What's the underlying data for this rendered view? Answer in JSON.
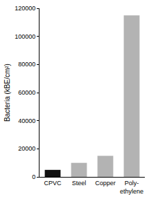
{
  "chart_data": {
    "type": "bar",
    "y_label": "Bacteria (kBE/cm²)",
    "categories": [
      "CPVC",
      "Steel",
      "Copper",
      "Poly-\nethylene"
    ],
    "values": [
      5000,
      10000,
      15000,
      115000
    ],
    "colors": [
      "#111111",
      "#b3b3b3",
      "#b3b3b3",
      "#b3b3b3"
    ],
    "ylim": [
      0,
      120000
    ],
    "yticks": [
      0,
      20000,
      40000,
      60000,
      80000,
      100000,
      120000
    ],
    "grid": false
  }
}
